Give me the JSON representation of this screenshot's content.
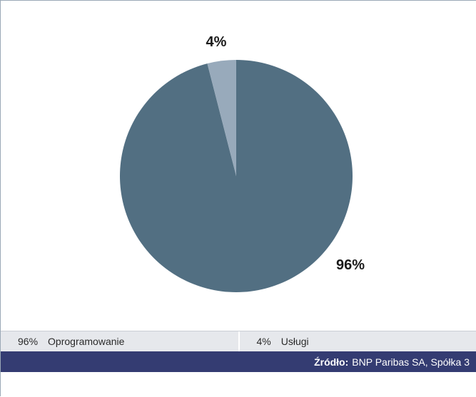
{
  "chart_data": {
    "type": "pie",
    "slices": [
      {
        "label": "Oprogramowanie",
        "value": 96,
        "display": "96%",
        "color": "#526f82"
      },
      {
        "label": "Usługi",
        "value": 4,
        "display": "4%",
        "color": "#98aabb"
      }
    ]
  },
  "legend": [
    {
      "pct": "96%",
      "label": "Oprogramowanie"
    },
    {
      "pct": "4%",
      "label": "Usługi"
    }
  ],
  "source": {
    "label": "Źródło:",
    "text": "BNP Paribas SA, Spółka 3"
  }
}
